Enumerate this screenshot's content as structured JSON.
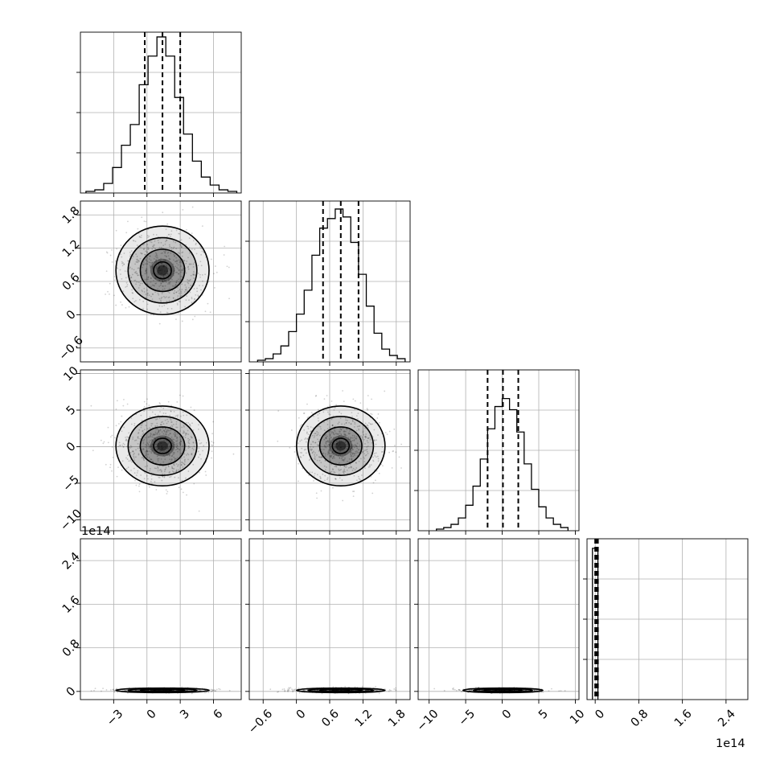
{
  "chart_data": {
    "type": "corner",
    "parameters": 4,
    "offset_labels": {
      "p4_axis": "1e14"
    },
    "quantile_lines": "dashed vertical lines at 16th, 50th, 84th percentiles",
    "grid": true,
    "panels_diagonal": [
      {
        "param": 0,
        "xlim": [
          -6,
          8.5
        ],
        "xticks": [
          -3,
          0,
          3,
          6
        ],
        "quantiles": [
          -0.2,
          1.4,
          3.0
        ],
        "bin_edges": [
          -5.5,
          -4.7,
          -3.9,
          -3.1,
          -2.3,
          -1.5,
          -0.7,
          0.1,
          0.9,
          1.7,
          2.5,
          3.3,
          4.1,
          4.9,
          5.7,
          6.5,
          7.3,
          8.1
        ],
        "counts": [
          0.01,
          0.02,
          0.06,
          0.16,
          0.3,
          0.43,
          0.68,
          0.86,
          0.98,
          0.86,
          0.6,
          0.37,
          0.2,
          0.1,
          0.05,
          0.02,
          0.01
        ]
      },
      {
        "param": 1,
        "xlim": [
          -0.85,
          2.05
        ],
        "xticks": [
          -0.6,
          0.0,
          0.6,
          1.2,
          1.8
        ],
        "quantiles": [
          0.48,
          0.8,
          1.12
        ],
        "bin_edges": [
          -0.7,
          -0.56,
          -0.42,
          -0.28,
          -0.14,
          0.0,
          0.14,
          0.28,
          0.42,
          0.56,
          0.7,
          0.84,
          0.98,
          1.12,
          1.26,
          1.4,
          1.54,
          1.68,
          1.82,
          1.96
        ],
        "counts": [
          0.01,
          0.02,
          0.05,
          0.1,
          0.19,
          0.3,
          0.45,
          0.67,
          0.84,
          0.9,
          0.96,
          0.91,
          0.75,
          0.55,
          0.35,
          0.18,
          0.08,
          0.04,
          0.02
        ]
      },
      {
        "param": 2,
        "xlim": [
          -11.5,
          10.5
        ],
        "xticks": [
          -10,
          -5,
          0,
          5,
          10
        ],
        "quantiles": [
          -2.0,
          0.1,
          2.2
        ],
        "bin_edges": [
          -9.0,
          -8.0,
          -7.0,
          -6.0,
          -5.0,
          -4.0,
          -3.0,
          -2.0,
          -1.0,
          0.0,
          1.0,
          2.0,
          3.0,
          4.0,
          5.0,
          6.0,
          7.0,
          8.0,
          9.0
        ],
        "counts": [
          0.01,
          0.02,
          0.04,
          0.08,
          0.16,
          0.28,
          0.45,
          0.64,
          0.78,
          0.83,
          0.76,
          0.62,
          0.42,
          0.26,
          0.15,
          0.08,
          0.04,
          0.02
        ]
      },
      {
        "param": 3,
        "xlim": [
          -0.15,
          2.8
        ],
        "xticks": [
          0.0,
          0.8,
          1.6,
          2.4
        ],
        "quantiles": [
          0.0,
          0.02,
          0.05
        ],
        "bin_edges": [
          -0.05,
          0.05
        ],
        "counts": [
          0.95
        ]
      }
    ],
    "panels_2d": [
      {
        "x_param": 0,
        "y_param": 1,
        "center": [
          1.4,
          0.8
        ],
        "spread": [
          2.0,
          0.38
        ]
      },
      {
        "x_param": 0,
        "y_param": 2,
        "center": [
          1.4,
          0.1
        ],
        "spread": [
          2.0,
          2.6
        ]
      },
      {
        "x_param": 1,
        "y_param": 2,
        "center": [
          0.8,
          0.1
        ],
        "spread": [
          0.38,
          2.6
        ]
      },
      {
        "x_param": 0,
        "y_param": 3,
        "center": [
          1.4,
          0.02
        ],
        "spread": [
          2.0,
          0.02
        ]
      },
      {
        "x_param": 1,
        "y_param": 3,
        "center": [
          0.8,
          0.02
        ],
        "spread": [
          0.38,
          0.02
        ]
      },
      {
        "x_param": 2,
        "y_param": 3,
        "center": [
          0.1,
          0.02
        ],
        "spread": [
          2.6,
          0.02
        ]
      }
    ],
    "y_axes": {
      "1": {
        "ylim": [
          -0.85,
          2.05
        ],
        "yticks": [
          -0.6,
          0.0,
          0.6,
          1.2,
          1.8
        ]
      },
      "2": {
        "ylim": [
          -11.5,
          10.5
        ],
        "yticks": [
          -10,
          -5,
          0,
          5,
          10
        ]
      },
      "3": {
        "ylim": [
          -0.15,
          2.8
        ],
        "yticks": [
          0.0,
          0.8,
          1.6,
          2.4
        ]
      }
    }
  }
}
